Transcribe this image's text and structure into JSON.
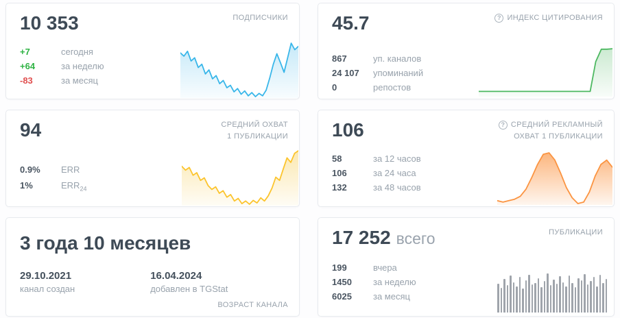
{
  "colors": {
    "positive": "#2fb344",
    "negative": "#e04f4f",
    "value_dark": "#4a5561"
  },
  "cards": {
    "subscribers": {
      "label": "ПОДПИСЧИКИ",
      "value": "10 353",
      "stats": [
        {
          "value": "+7",
          "label": "сегодня",
          "color": "#2fb344"
        },
        {
          "value": "+64",
          "label": "за неделю",
          "color": "#2fb344"
        },
        {
          "value": "-83",
          "label": "за месяц",
          "color": "#e04f4f"
        }
      ],
      "spark": {
        "type": "area",
        "color": "#38b6e9",
        "fill": "#c3e8f8",
        "points": [
          76,
          72,
          78,
          66,
          70,
          58,
          62,
          50,
          55,
          44,
          48,
          38,
          42,
          33,
          36,
          28,
          32,
          25,
          29,
          23,
          27,
          22,
          26,
          23,
          30,
          45,
          62,
          75,
          64,
          52,
          70,
          88,
          80,
          84
        ]
      }
    },
    "citation": {
      "help_icon": "?",
      "label": "ИНДЕКС ЦИТИРОВАНИЯ",
      "value": "45.7",
      "stats": [
        {
          "value": "867",
          "label": "уп. каналов"
        },
        {
          "value": "24 107",
          "label": "упоминаний"
        },
        {
          "value": "0",
          "label": "репостов"
        }
      ],
      "spark": {
        "type": "area",
        "color": "#4cb860",
        "fill": "#c9e9cf",
        "min": 0,
        "max": 100,
        "points": [
          8,
          8,
          8,
          8,
          8,
          8,
          8,
          8,
          8,
          8,
          8,
          8,
          8,
          8,
          8,
          8,
          8,
          8,
          8,
          8,
          8,
          70,
          96,
          96,
          97
        ]
      }
    },
    "reach": {
      "label_line1": "СРЕДНИЙ ОХВАТ",
      "label_line2": "1 ПУБЛИКАЦИИ",
      "value": "94",
      "stats": [
        {
          "value": "0.9%",
          "label": "ERR",
          "sub": ""
        },
        {
          "value": "1%",
          "label": "ERR",
          "sub": "24"
        }
      ],
      "spark": {
        "type": "area",
        "color": "#fcc42c",
        "fill": "#fbe7ad",
        "points": [
          72,
          66,
          70,
          58,
          62,
          50,
          54,
          42,
          36,
          40,
          30,
          34,
          24,
          28,
          18,
          22,
          14,
          18,
          13,
          19,
          15,
          23,
          18,
          26,
          38,
          55,
          50,
          68,
          85,
          78,
          92,
          96
        ]
      }
    },
    "ad_reach": {
      "help_icon": "?",
      "label_line1": "СРЕДНИЙ РЕКЛАМНЫЙ",
      "label_line2": "ОХВАТ 1 ПУБЛИКАЦИИ",
      "value": "106",
      "stats": [
        {
          "value": "58",
          "label": "за 12 часов"
        },
        {
          "value": "106",
          "label": "за 24 часа"
        },
        {
          "value": "132",
          "label": "за 48 часов"
        }
      ],
      "spark": {
        "type": "area",
        "color": "#fb9441",
        "fill": "#fcb277",
        "points": [
          24,
          22,
          24,
          26,
          30,
          40,
          56,
          74,
          88,
          90,
          80,
          62,
          42,
          28,
          20,
          22,
          36,
          58,
          74,
          80,
          70
        ]
      }
    },
    "age": {
      "value": "3 года 10 месяцев",
      "created_date": "29.10.2021",
      "created_label": "канал создан",
      "added_date": "16.04.2024",
      "added_label": "добавлен в TGStat",
      "footer_label": "ВОЗРАСТ КАНАЛА"
    },
    "posts": {
      "label": "ПУБЛИКАЦИИ",
      "value": "17 252",
      "value_suffix": "всего",
      "stats": [
        {
          "value": "199",
          "label": "вчера"
        },
        {
          "value": "1450",
          "label": "за неделю"
        },
        {
          "value": "6025",
          "label": "за месяц"
        }
      ],
      "bars": {
        "color": "#9fa4ab",
        "heights": [
          70,
          60,
          82,
          66,
          90,
          74,
          64,
          86,
          58,
          78,
          92,
          68,
          72,
          84,
          62,
          76,
          95,
          66,
          80,
          70,
          88,
          74,
          64,
          90,
          72,
          62,
          84,
          78,
          94,
          68,
          76,
          86,
          64,
          92,
          72,
          82
        ]
      }
    }
  }
}
